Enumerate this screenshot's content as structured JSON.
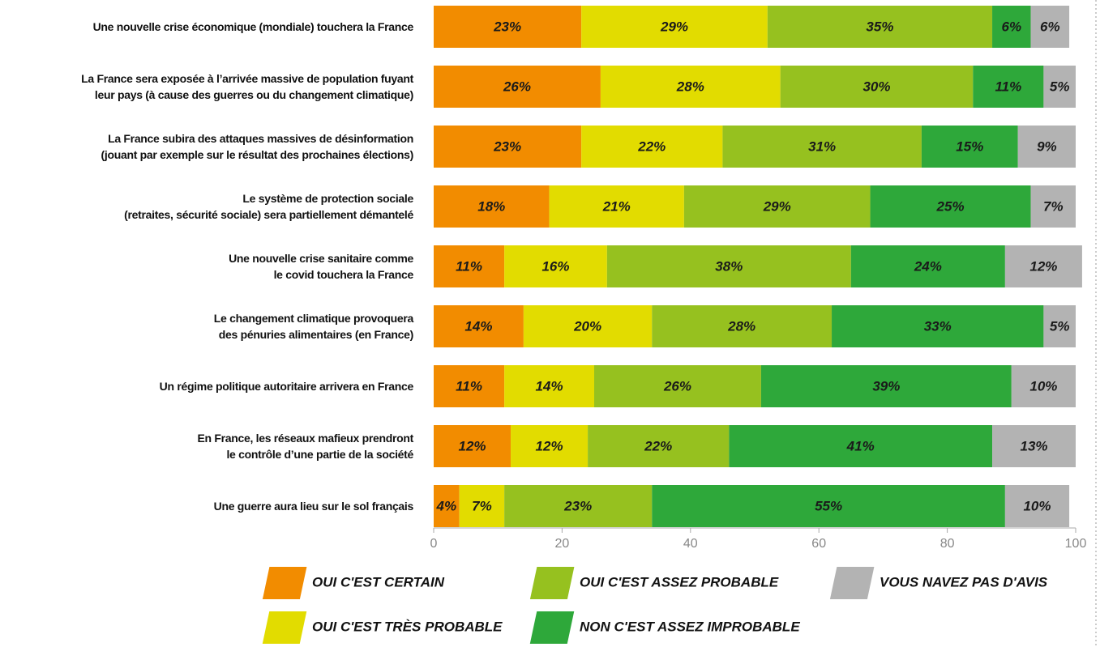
{
  "chart_data": {
    "type": "stacked-bar-horizontal",
    "categories": [
      "Une nouvelle crise économique (mondiale) touchera la France",
      "La France sera exposée à l’arrivée massive de population fuyant\nleur pays (à cause des guerres ou du changement climatique)",
      "La France subira des attaques massives de désinformation\n(jouant par exemple sur le résultat des prochaines élections)",
      "Le système de protection sociale\n(retraites, sécurité sociale) sera partiellement démantelé",
      "Une nouvelle crise sanitaire comme\nle covid touchera la France",
      "Le changement climatique provoquera\ndes pénuries alimentaires (en France)",
      "Un régime politique autoritaire arrivera en France",
      "En France, les réseaux mafieux prendront\nle contrôle d’une partie de la société",
      "Une guerre aura lieu sur le sol français"
    ],
    "series": [
      {
        "name": "OUI C'EST CERTAIN",
        "color": "#f28c00",
        "values": [
          23,
          26,
          23,
          18,
          11,
          14,
          11,
          12,
          4
        ],
        "value_labels": [
          "23%",
          "26%",
          "23%",
          "18%",
          "11%",
          "14%",
          "11%",
          "12%",
          "4%"
        ]
      },
      {
        "name": "OUI C'EST TRÈS PROBABLE",
        "color": "#e2dc00",
        "values": [
          29,
          28,
          22,
          21,
          16,
          20,
          14,
          12,
          7
        ],
        "value_labels": [
          "29%",
          "28%",
          "22%",
          "21%",
          "16%",
          "20%",
          "14%",
          "12%",
          "7%"
        ]
      },
      {
        "name": "OUI C'EST ASSEZ PROBABLE",
        "color": "#96c11f",
        "values": [
          35,
          30,
          31,
          29,
          38,
          28,
          26,
          22,
          23
        ],
        "value_labels": [
          "35%",
          "30%",
          "31%",
          "29%",
          "38%",
          "28%",
          "26%",
          "22%",
          "23%"
        ]
      },
      {
        "name": "NON C'EST ASSEZ IMPROBABLE",
        "color": "#2ea83a",
        "values": [
          6,
          11,
          15,
          25,
          24,
          33,
          39,
          41,
          55
        ],
        "value_labels": [
          "6%",
          "11%",
          "15%",
          "25%",
          "24%",
          "33%",
          "39%",
          "41%",
          "55%"
        ]
      },
      {
        "name": "VOUS NAVEZ PAS D'AVIS",
        "color": "#b3b3b3",
        "values": [
          6,
          5,
          9,
          7,
          12,
          5,
          10,
          13,
          10
        ],
        "value_labels": [
          "6%",
          "5%",
          "9%",
          "7%",
          "12%",
          "5%",
          "10%",
          "13%",
          "10%"
        ]
      }
    ],
    "xlim": [
      0,
      100
    ],
    "xticks": [
      0,
      20,
      40,
      60,
      80,
      100
    ]
  }
}
